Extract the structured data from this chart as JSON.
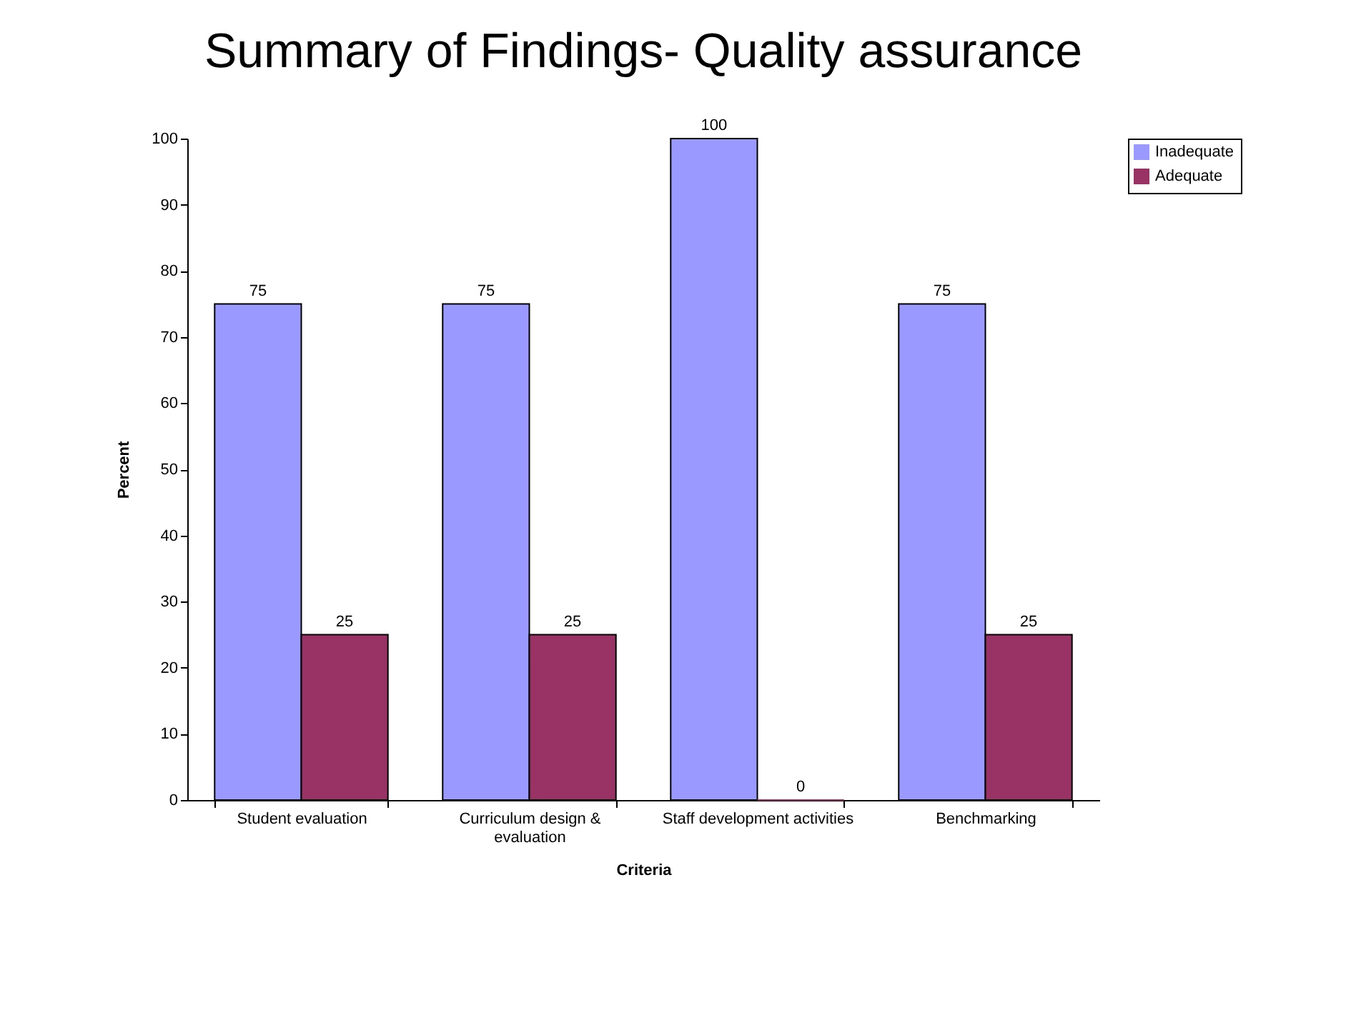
{
  "chart_data": {
    "type": "bar",
    "title": "Summary of Findings- Quality assurance",
    "xlabel": "Criteria",
    "ylabel": "Percent",
    "categories": [
      "Student evaluation",
      "Curriculum design & evaluation",
      "Staff development activities",
      "Benchmarking"
    ],
    "series": [
      {
        "name": "Inadequate",
        "color": "#9999ff",
        "values": [
          75,
          75,
          100,
          75
        ]
      },
      {
        "name": "Adequate",
        "color": "#993366",
        "values": [
          25,
          25,
          0,
          25
        ]
      }
    ],
    "ylim": [
      0,
      100
    ],
    "yticks": [
      0,
      10,
      20,
      30,
      40,
      50,
      60,
      70,
      80,
      90,
      100
    ],
    "grid": false,
    "legend": "right",
    "data_labels": true
  }
}
